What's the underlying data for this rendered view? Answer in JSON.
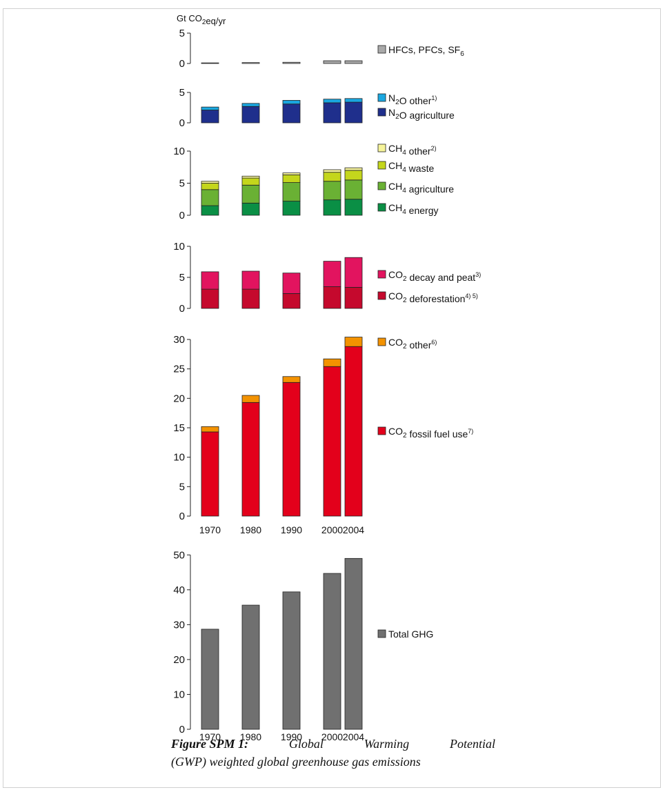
{
  "caption": {
    "label": "Figure SPM 1:",
    "line1_words": [
      "Global",
      "Warming",
      "Potential"
    ],
    "line2": "(GWP) weighted global greenhouse gas emissions"
  },
  "chart_data": [
    {
      "type": "bar",
      "stacked": true,
      "unit_label": "Gt CO2eq/yr",
      "years": [
        "1970",
        "1980",
        "1990",
        "2000",
        "2004"
      ],
      "ylim": [
        0,
        5
      ],
      "yticks": [
        0,
        5
      ],
      "series": [
        {
          "name": "HFCs, PFCs, SF6",
          "color": "#a9a9a9",
          "values": [
            0.1,
            0.15,
            0.2,
            0.45,
            0.45
          ]
        }
      ]
    },
    {
      "type": "bar",
      "stacked": true,
      "years": [
        "1970",
        "1980",
        "1990",
        "2000",
        "2004"
      ],
      "ylim": [
        0,
        5
      ],
      "yticks": [
        0,
        5
      ],
      "series": [
        {
          "name": "N2O agriculture",
          "color": "#1f2f8c",
          "values": [
            2.1,
            2.7,
            3.1,
            3.3,
            3.4
          ]
        },
        {
          "name": "N2O other",
          "sup": "1)",
          "color": "#1aa7e0",
          "values": [
            0.5,
            0.5,
            0.6,
            0.6,
            0.6
          ]
        }
      ]
    },
    {
      "type": "bar",
      "stacked": true,
      "years": [
        "1970",
        "1980",
        "1990",
        "2000",
        "2004"
      ],
      "ylim": [
        0,
        10
      ],
      "yticks": [
        0,
        5,
        10
      ],
      "series": [
        {
          "name": "CH4 energy",
          "color": "#0a8f45",
          "values": [
            1.5,
            1.9,
            2.2,
            2.4,
            2.5
          ]
        },
        {
          "name": "CH4 agriculture",
          "color": "#6ab134",
          "values": [
            2.5,
            2.8,
            2.9,
            2.9,
            3.0
          ]
        },
        {
          "name": "CH4 waste",
          "color": "#c4d61c",
          "values": [
            1.0,
            1.1,
            1.2,
            1.4,
            1.5
          ]
        },
        {
          "name": "CH4 other",
          "sup": "2)",
          "color": "#f6f49a",
          "values": [
            0.3,
            0.3,
            0.3,
            0.4,
            0.4
          ]
        }
      ]
    },
    {
      "type": "bar",
      "stacked": true,
      "years": [
        "1970",
        "1980",
        "1990",
        "2000",
        "2004"
      ],
      "ylim": [
        0,
        10
      ],
      "yticks": [
        0,
        5,
        10
      ],
      "series": [
        {
          "name": "CO2 deforestation",
          "sup": "4) 5)",
          "color": "#c5092d",
          "values": [
            3.1,
            3.1,
            2.4,
            3.5,
            3.4
          ]
        },
        {
          "name": "CO2 decay and peat",
          "sup": "3)",
          "color": "#e2145f",
          "values": [
            2.8,
            2.9,
            3.3,
            4.1,
            4.8
          ]
        }
      ]
    },
    {
      "type": "bar",
      "stacked": true,
      "years": [
        "1970",
        "1980",
        "1990",
        "2000",
        "2004"
      ],
      "ylim": [
        0,
        30
      ],
      "yticks": [
        0,
        5,
        10,
        15,
        20,
        25,
        30
      ],
      "series": [
        {
          "name": "CO2 fossil fuel use",
          "sup": "7)",
          "color": "#e3001b",
          "values": [
            14.3,
            19.3,
            22.7,
            25.4,
            28.8
          ]
        },
        {
          "name": "CO2 other",
          "sup": "6)",
          "color": "#f39200",
          "values": [
            0.9,
            1.2,
            1.0,
            1.3,
            1.6
          ]
        }
      ]
    },
    {
      "type": "bar",
      "stacked": true,
      "years": [
        "1970",
        "1980",
        "1990",
        "2000",
        "2004"
      ],
      "ylim": [
        0,
        55
      ],
      "yticks": [
        0,
        10,
        20,
        30,
        40,
        50
      ],
      "series": [
        {
          "name": "Total GHG",
          "color": "#707070",
          "values": [
            28.7,
            35.6,
            39.4,
            44.7,
            49.0
          ]
        }
      ]
    }
  ]
}
